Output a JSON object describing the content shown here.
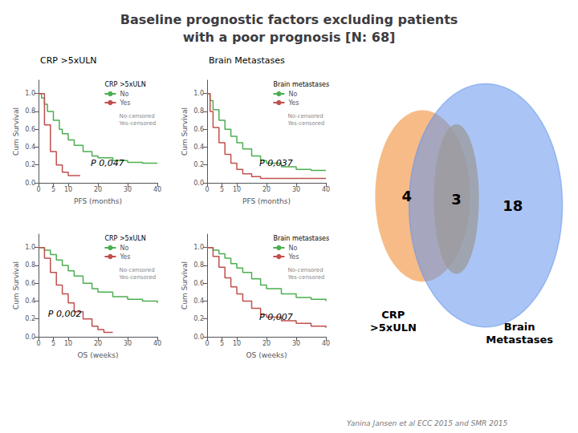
{
  "title": "Baseline prognostic factors excluding patients\nwith a poor prognosis [N: 68]",
  "annotations": [
    "CRP >5xULN",
    "Brain Metastases",
    "Yanina Jansen et al ECC 2015 and SMR 2015"
  ],
  "chart_data": [
    {
      "type": "line",
      "line_style": "step",
      "xlabel": "PFS (months)",
      "ylabel": "Cum Survival",
      "xlim": [
        0,
        40
      ],
      "ylim": [
        0,
        1.15
      ],
      "xticks": [
        0,
        5,
        10,
        20,
        30,
        40
      ],
      "yticks": [
        {
          "value": 0,
          "label": "0.0"
        },
        0.2,
        0.4,
        0.6,
        0.8,
        {
          "value": 1,
          "label": "1.0"
        }
      ],
      "grid": false,
      "legend": "upper right",
      "legend_title": "CRP >5xULN",
      "legend_notes": [
        "No-censored",
        "Yes-censored"
      ],
      "annotations": [
        "P 0,047"
      ],
      "series": [
        {
          "name": "No",
          "color": "#4CAF50",
          "x": [
            0,
            1,
            2,
            3,
            5,
            7,
            8,
            10,
            12,
            15,
            18,
            20,
            25,
            30,
            35,
            40
          ],
          "values": [
            1.0,
            0.95,
            0.88,
            0.8,
            0.7,
            0.6,
            0.55,
            0.48,
            0.42,
            0.35,
            0.3,
            0.28,
            0.25,
            0.23,
            0.22,
            0.22
          ]
        },
        {
          "name": "Yes",
          "color": "#C0504D",
          "x": [
            0,
            2,
            4,
            6,
            8,
            10,
            12,
            14
          ],
          "values": [
            1.0,
            0.65,
            0.35,
            0.2,
            0.12,
            0.08,
            0.08,
            0.08
          ]
        }
      ]
    },
    {
      "type": "line",
      "line_style": "step",
      "xlabel": "PFS (months)",
      "ylabel": "Cum Survival",
      "xlim": [
        0,
        40
      ],
      "ylim": [
        0,
        1.15
      ],
      "xticks": [
        0,
        5,
        10,
        20,
        30,
        40
      ],
      "yticks": [
        {
          "value": 0,
          "label": "0.0"
        },
        0.2,
        0.4,
        0.6,
        0.8,
        {
          "value": 1,
          "label": "1.0"
        }
      ],
      "grid": false,
      "legend": "upper right",
      "legend_title": "Brain metastases",
      "legend_notes": [
        "No-censored",
        "Yes-censored"
      ],
      "annotations": [
        "P 0,037"
      ],
      "series": [
        {
          "name": "No",
          "color": "#4CAF50",
          "x": [
            0,
            1,
            2,
            4,
            6,
            8,
            10,
            12,
            15,
            18,
            20,
            25,
            30,
            35,
            40
          ],
          "values": [
            1.0,
            0.92,
            0.82,
            0.7,
            0.6,
            0.52,
            0.45,
            0.38,
            0.3,
            0.25,
            0.22,
            0.18,
            0.15,
            0.14,
            0.14
          ]
        },
        {
          "name": "Yes",
          "color": "#C0504D",
          "x": [
            0,
            1,
            2,
            4,
            6,
            8,
            10,
            12,
            15,
            18,
            20,
            25,
            30,
            35,
            40
          ],
          "values": [
            1.0,
            0.8,
            0.62,
            0.45,
            0.32,
            0.22,
            0.15,
            0.1,
            0.07,
            0.05,
            0.05,
            0.05,
            0.05,
            0.05,
            0.05
          ]
        }
      ]
    },
    {
      "type": "line",
      "line_style": "step",
      "xlabel": "OS (weeks)",
      "ylabel": "Cum Survival",
      "xlim": [
        0,
        40
      ],
      "ylim": [
        0,
        1.15
      ],
      "xticks": [
        0,
        5,
        10,
        20,
        30,
        40
      ],
      "yticks": [
        {
          "value": 0,
          "label": "0.0"
        },
        0.2,
        0.4,
        0.6,
        0.8,
        {
          "value": 1,
          "label": "1.0"
        }
      ],
      "grid": false,
      "legend": "upper right",
      "legend_title": "CRP >5xULN",
      "legend_notes": [
        "No-censored",
        "Yes-censored"
      ],
      "annotations": [
        "P 0,002"
      ],
      "series": [
        {
          "name": "No",
          "color": "#4CAF50",
          "x": [
            0,
            2,
            4,
            6,
            8,
            10,
            12,
            15,
            18,
            20,
            25,
            30,
            35,
            40
          ],
          "values": [
            1.0,
            0.97,
            0.92,
            0.86,
            0.8,
            0.74,
            0.68,
            0.6,
            0.54,
            0.5,
            0.45,
            0.42,
            0.4,
            0.38
          ]
        },
        {
          "name": "Yes",
          "color": "#C0504D",
          "x": [
            0,
            2,
            4,
            6,
            8,
            10,
            12,
            15,
            18,
            20,
            22,
            25
          ],
          "values": [
            1.0,
            0.88,
            0.72,
            0.58,
            0.48,
            0.38,
            0.28,
            0.2,
            0.12,
            0.08,
            0.05,
            0.05
          ]
        }
      ]
    },
    {
      "type": "line",
      "line_style": "step",
      "xlabel": "OS (weeks)",
      "ylabel": "Cum Survival",
      "xlim": [
        0,
        40
      ],
      "ylim": [
        0,
        1.15
      ],
      "xticks": [
        0,
        5,
        10,
        20,
        30,
        40
      ],
      "yticks": [
        {
          "value": 0,
          "label": "0.0"
        },
        0.2,
        0.4,
        0.6,
        0.8,
        {
          "value": 1,
          "label": "1.0"
        }
      ],
      "grid": false,
      "legend": "upper right",
      "legend_title": "Brain metastases",
      "legend_notes": [
        "No-censored",
        "Yes-censored"
      ],
      "annotations": [
        "P 0,007"
      ],
      "series": [
        {
          "name": "No",
          "color": "#4CAF50",
          "x": [
            0,
            2,
            4,
            6,
            8,
            10,
            12,
            15,
            18,
            20,
            25,
            30,
            35,
            40
          ],
          "values": [
            1.0,
            0.97,
            0.93,
            0.88,
            0.82,
            0.77,
            0.72,
            0.65,
            0.58,
            0.54,
            0.48,
            0.44,
            0.42,
            0.4
          ]
        },
        {
          "name": "Yes",
          "color": "#C0504D",
          "x": [
            0,
            2,
            4,
            6,
            8,
            10,
            12,
            15,
            18,
            20,
            25,
            30,
            35,
            40
          ],
          "values": [
            1.0,
            0.9,
            0.78,
            0.66,
            0.56,
            0.48,
            0.4,
            0.32,
            0.25,
            0.22,
            0.18,
            0.15,
            0.12,
            0.1
          ]
        }
      ]
    },
    {
      "type": "venn",
      "series": [
        {
          "name": "CRP\n>5xULN",
          "color": "#F4A460",
          "values": [
            4
          ]
        },
        {
          "name": "Brain\nMetastases",
          "color": "#6495ED",
          "values": [
            18
          ]
        }
      ],
      "overlap": 3
    }
  ]
}
